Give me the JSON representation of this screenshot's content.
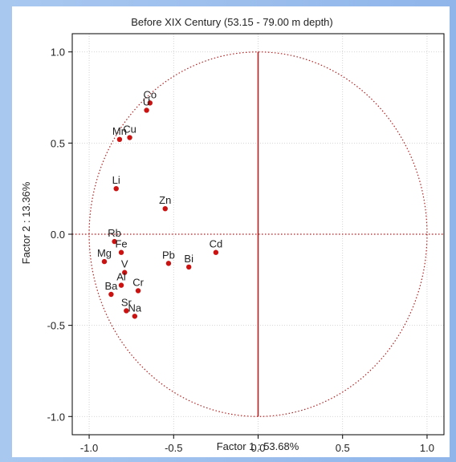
{
  "chart_data": {
    "type": "scatter",
    "title": "Before XIX Century (53.15 - 79.00 m depth)",
    "xlabel": "Factor 1 : 53.68%",
    "ylabel": "Factor 2 : 13.36%",
    "xlim": [
      -1.1,
      1.1
    ],
    "ylim": [
      -1.1,
      1.1
    ],
    "xticks": [
      -1.0,
      -0.5,
      0.0,
      0.5,
      1.0
    ],
    "yticks": [
      -1.0,
      -0.5,
      0.0,
      0.5,
      1.0
    ],
    "xtick_labels": [
      "-1.0",
      "-0.5",
      "0.0",
      "0.5",
      "1.0"
    ],
    "ytick_labels": [
      "-1.0",
      "-0.5",
      "0.0",
      "0.5",
      "1.0"
    ],
    "grid": true,
    "unit_circle": true,
    "point_color": "#cc1111",
    "axis_line_color": "#b22222",
    "points": [
      {
        "label": "Co",
        "x": -0.64,
        "y": 0.72
      },
      {
        "label": "U",
        "x": -0.66,
        "y": 0.68
      },
      {
        "label": "Mn",
        "x": -0.82,
        "y": 0.52
      },
      {
        "label": "Cu",
        "x": -0.76,
        "y": 0.53
      },
      {
        "label": "Li",
        "x": -0.84,
        "y": 0.25
      },
      {
        "label": "Zn",
        "x": -0.55,
        "y": 0.14
      },
      {
        "label": "Rb",
        "x": -0.85,
        "y": -0.04
      },
      {
        "label": "Fe",
        "x": -0.81,
        "y": -0.1
      },
      {
        "label": "Mg",
        "x": -0.91,
        "y": -0.15
      },
      {
        "label": "Cd",
        "x": -0.25,
        "y": -0.1
      },
      {
        "label": "Pb",
        "x": -0.53,
        "y": -0.16
      },
      {
        "label": "Bi",
        "x": -0.41,
        "y": -0.18
      },
      {
        "label": "V",
        "x": -0.79,
        "y": -0.21
      },
      {
        "label": "Al",
        "x": -0.81,
        "y": -0.28
      },
      {
        "label": "Cr",
        "x": -0.71,
        "y": -0.31
      },
      {
        "label": "Ba",
        "x": -0.87,
        "y": -0.33
      },
      {
        "label": "Sr",
        "x": -0.78,
        "y": -0.42
      },
      {
        "label": "Na",
        "x": -0.73,
        "y": -0.45
      }
    ]
  }
}
